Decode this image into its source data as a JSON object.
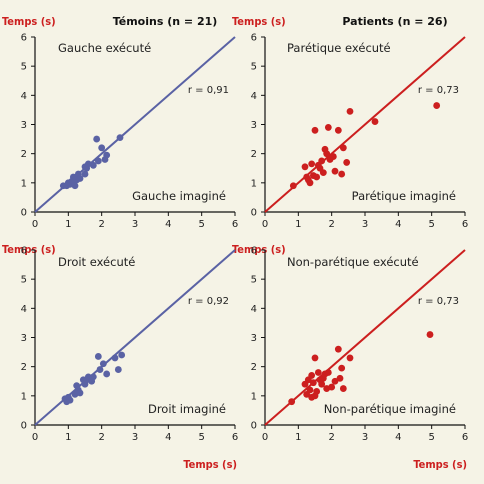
{
  "header": {
    "temoins": "Témoins (n = 21)",
    "patients": "Patients (n = 26)"
  },
  "axis_labels": {
    "ylabel": "Temps (s)",
    "xlabel": "Temps (s)"
  },
  "colors": {
    "temoins": "#5a62a4",
    "patients": "#cc1f1f",
    "axis_title": "#cc1f1f",
    "background": "#f5f3e6"
  },
  "chart_data": [
    {
      "type": "scatter",
      "title": "Témoins (n = 21)",
      "corner_label": "Gauche exécuté",
      "xlabel_inner": "Gauche imaginé",
      "ylabel": "Temps (s)",
      "r_text": "r = 0,91",
      "color": "temoins",
      "xlim": [
        0,
        6
      ],
      "ylim": [
        0,
        6
      ],
      "ticks": [
        0,
        1,
        2,
        3,
        4,
        5,
        6
      ],
      "fit_line": [
        [
          0,
          0
        ],
        [
          6,
          6
        ]
      ],
      "points": [
        [
          0.85,
          0.9
        ],
        [
          0.95,
          0.9
        ],
        [
          1.0,
          1.0
        ],
        [
          1.05,
          0.95
        ],
        [
          1.1,
          1.05
        ],
        [
          1.2,
          0.9
        ],
        [
          1.25,
          1.1
        ],
        [
          1.3,
          1.3
        ],
        [
          1.35,
          1.15
        ],
        [
          1.5,
          1.3
        ],
        [
          1.55,
          1.5
        ],
        [
          1.6,
          1.65
        ],
        [
          1.75,
          1.6
        ],
        [
          1.85,
          2.5
        ],
        [
          1.9,
          1.75
        ],
        [
          2.0,
          2.2
        ],
        [
          2.1,
          1.8
        ],
        [
          2.15,
          1.95
        ],
        [
          2.55,
          2.55
        ],
        [
          1.15,
          1.2
        ],
        [
          1.5,
          1.55
        ]
      ]
    },
    {
      "type": "scatter",
      "title": "Patients (n = 26)",
      "corner_label": "Parétique exécuté",
      "xlabel_inner": "Parétique imaginé",
      "ylabel": "Temps (s)",
      "r_text": "r = 0,73",
      "color": "patients",
      "xlim": [
        0,
        6
      ],
      "ylim": [
        0,
        6
      ],
      "ticks": [
        0,
        1,
        2,
        3,
        4,
        5,
        6
      ],
      "fit_line": [
        [
          0,
          0
        ],
        [
          6,
          6
        ]
      ],
      "points": [
        [
          0.85,
          0.9
        ],
        [
          1.2,
          1.55
        ],
        [
          1.25,
          1.2
        ],
        [
          1.3,
          1.1
        ],
        [
          1.35,
          1.0
        ],
        [
          1.4,
          1.65
        ],
        [
          1.45,
          1.25
        ],
        [
          1.5,
          2.8
        ],
        [
          1.55,
          1.2
        ],
        [
          1.6,
          1.6
        ],
        [
          1.7,
          1.75
        ],
        [
          1.75,
          1.35
        ],
        [
          1.8,
          2.15
        ],
        [
          1.85,
          2.0
        ],
        [
          1.9,
          2.9
        ],
        [
          1.95,
          1.8
        ],
        [
          2.05,
          1.9
        ],
        [
          2.1,
          1.4
        ],
        [
          2.2,
          2.8
        ],
        [
          2.3,
          1.3
        ],
        [
          2.35,
          2.2
        ],
        [
          2.45,
          1.7
        ],
        [
          2.55,
          3.45
        ],
        [
          3.3,
          3.1
        ],
        [
          5.15,
          3.65
        ],
        [
          1.65,
          1.5
        ]
      ]
    },
    {
      "type": "scatter",
      "title": "Témoins (n = 21)",
      "corner_label": "Droit exécuté",
      "xlabel_inner": "Droit imaginé",
      "xlabel": "Temps (s)",
      "ylabel": "Temps (s)",
      "r_text": "r = 0,92",
      "color": "temoins",
      "xlim": [
        0,
        6
      ],
      "ylim": [
        0,
        6
      ],
      "ticks": [
        0,
        1,
        2,
        3,
        4,
        5,
        6
      ],
      "fit_line": [
        [
          0,
          0
        ],
        [
          6,
          6
        ]
      ],
      "points": [
        [
          0.9,
          0.9
        ],
        [
          0.95,
          0.8
        ],
        [
          1.0,
          0.95
        ],
        [
          1.05,
          0.85
        ],
        [
          1.2,
          1.05
        ],
        [
          1.25,
          1.35
        ],
        [
          1.3,
          1.2
        ],
        [
          1.35,
          1.1
        ],
        [
          1.45,
          1.55
        ],
        [
          1.55,
          1.55
        ],
        [
          1.6,
          1.65
        ],
        [
          1.7,
          1.5
        ],
        [
          1.75,
          1.65
        ],
        [
          1.9,
          2.35
        ],
        [
          1.95,
          1.9
        ],
        [
          2.05,
          2.1
        ],
        [
          2.15,
          1.75
        ],
        [
          2.4,
          2.3
        ],
        [
          2.5,
          1.9
        ],
        [
          2.6,
          2.4
        ],
        [
          1.5,
          1.4
        ]
      ]
    },
    {
      "type": "scatter",
      "title": "Patients (n = 26)",
      "corner_label": "Non-parétique exécuté",
      "xlabel_inner": "Non-parétique imaginé",
      "xlabel": "Temps (s)",
      "ylabel": "Temps (s)",
      "r_text": "r = 0,73",
      "color": "patients",
      "xlim": [
        0,
        6
      ],
      "ylim": [
        0,
        6
      ],
      "ticks": [
        0,
        1,
        2,
        3,
        4,
        5,
        6
      ],
      "fit_line": [
        [
          0,
          0
        ],
        [
          6,
          6
        ]
      ],
      "points": [
        [
          0.8,
          0.8
        ],
        [
          1.2,
          1.4
        ],
        [
          1.25,
          1.05
        ],
        [
          1.3,
          1.55
        ],
        [
          1.35,
          1.2
        ],
        [
          1.4,
          0.95
        ],
        [
          1.45,
          1.45
        ],
        [
          1.5,
          2.3
        ],
        [
          1.55,
          1.15
        ],
        [
          1.6,
          1.8
        ],
        [
          1.65,
          1.55
        ],
        [
          1.7,
          1.4
        ],
        [
          1.75,
          1.6
        ],
        [
          1.8,
          1.75
        ],
        [
          1.85,
          1.25
        ],
        [
          1.9,
          1.8
        ],
        [
          2.0,
          1.3
        ],
        [
          2.1,
          1.5
        ],
        [
          2.2,
          2.6
        ],
        [
          2.25,
          1.6
        ],
        [
          2.3,
          1.95
        ],
        [
          2.35,
          1.25
        ],
        [
          2.55,
          2.3
        ],
        [
          4.95,
          3.1
        ],
        [
          1.5,
          1.0
        ],
        [
          1.4,
          1.7
        ]
      ]
    }
  ]
}
